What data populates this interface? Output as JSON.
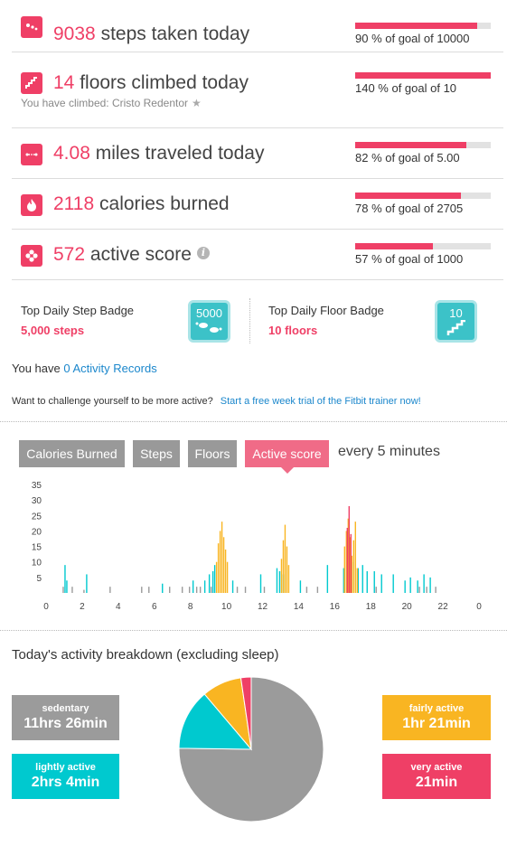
{
  "stats": [
    {
      "icon": "steps-icon",
      "value": "9038",
      "label": "steps taken today",
      "goal_text": "90 % of goal of 10000",
      "goal_fraction": 0.9
    },
    {
      "icon": "floors-icon",
      "value": "14",
      "label": "floors climbed today",
      "goal_text": "140 % of goal of 10",
      "goal_fraction": 1.0,
      "note": "You have climbed: Cristo Redentor"
    },
    {
      "icon": "distance-icon",
      "value": "4.08",
      "label": "miles traveled today",
      "goal_text": "82 % of goal of 5.00",
      "goal_fraction": 0.82
    },
    {
      "icon": "flame-icon",
      "value": "2118",
      "label": "calories burned",
      "goal_text": "78 % of goal of 2705",
      "goal_fraction": 0.78
    },
    {
      "icon": "flower-icon",
      "value": "572",
      "label": "active score",
      "goal_text": "57 % of goal of 1000",
      "goal_fraction": 0.57,
      "info_icon": "info-icon"
    }
  ],
  "badges": {
    "step": {
      "title": "Top Daily Step Badge",
      "value": "5,000 steps",
      "badge_label": "5000"
    },
    "floor": {
      "title": "Top Daily Floor Badge",
      "value": "10 floors",
      "badge_label": "10"
    }
  },
  "records": {
    "prefix": "You have",
    "link": "0 Activity Records"
  },
  "challenge": {
    "text": "Want to challenge yourself to be more active?",
    "link": "Start a free week trial of the Fitbit trainer now!"
  },
  "chart_tabs": [
    "Calories Burned",
    "Steps",
    "Floors",
    "Active score"
  ],
  "active_tab": "Active score",
  "interval": "every 5 minutes",
  "chart_data": {
    "type": "bar",
    "x_ticks": [
      "0",
      "2",
      "4",
      "6",
      "8",
      "10",
      "12",
      "14",
      "16",
      "18",
      "20",
      "22",
      "0"
    ],
    "y_ticks": [
      "5",
      "10",
      "15",
      "20",
      "25",
      "30",
      "35"
    ],
    "ylim": [
      0,
      35
    ],
    "colors": {
      "sedentary": "#9b9b9b",
      "lightly_active": "#00c9cf",
      "fairly_active": "#f9b522",
      "very_active": "#ef3f66"
    },
    "series": [
      {
        "level": "sedentary",
        "x": [
          0.95,
          1.45,
          2.1,
          3.55,
          5.3,
          5.7,
          6.85,
          7.55,
          7.95,
          8.35,
          8.55,
          9.15,
          10.6,
          11.05,
          12.1,
          14.45,
          15.05,
          18.3,
          20.7,
          21.1,
          21.6
        ],
        "values": [
          2,
          2,
          1,
          2,
          2,
          2,
          2,
          2,
          2,
          2,
          2,
          2,
          2,
          2,
          2,
          2,
          2,
          2,
          2,
          2,
          2
        ]
      },
      {
        "level": "lightly_active",
        "x": [
          1.05,
          1.15,
          2.25,
          6.45,
          8.15,
          8.8,
          9.05,
          9.25,
          9.35,
          10.35,
          11.9,
          12.8,
          12.95,
          13.15,
          14.1,
          15.6,
          16.5,
          16.85,
          17.05,
          17.3,
          17.55,
          17.8,
          18.2,
          18.6,
          19.25,
          19.9,
          20.2,
          20.6,
          20.95,
          21.3
        ],
        "values": [
          9,
          4,
          6,
          3,
          4,
          4,
          6,
          7,
          9,
          4,
          6,
          8,
          7,
          6,
          4,
          9,
          8,
          9,
          10,
          8,
          9,
          7,
          7,
          6,
          6,
          4,
          5,
          4,
          6,
          5
        ]
      },
      {
        "level": "fairly_active",
        "x": [
          9.45,
          9.55,
          9.65,
          9.75,
          9.85,
          9.95,
          10.05,
          13.05,
          13.15,
          13.25,
          13.35,
          13.45,
          16.55,
          16.65,
          16.75,
          16.85,
          16.95,
          17.05,
          17.15,
          17.25
        ],
        "values": [
          10,
          16,
          20,
          23,
          18,
          14,
          10,
          11,
          17,
          22,
          15,
          9,
          15,
          20,
          24,
          18,
          12,
          17,
          23,
          8
        ]
      },
      {
        "level": "very_active",
        "x": [
          16.7,
          16.8,
          16.9
        ],
        "values": [
          21,
          28,
          19
        ]
      }
    ]
  },
  "breakdown": {
    "title": "Today's activity breakdown (excluding sleep)",
    "categories": [
      {
        "key": "sedentary",
        "label": "sedentary",
        "duration": "11hrs 26min",
        "color": "#9b9b9b",
        "minutes": 686
      },
      {
        "key": "lightly_active",
        "label": "lightly active",
        "duration": "2hrs 4min",
        "color": "#00c9cf",
        "minutes": 124
      },
      {
        "key": "fairly_active",
        "label": "fairly active",
        "duration": "1hr 21min",
        "color": "#f9b522",
        "minutes": 81
      },
      {
        "key": "very_active",
        "label": "very active",
        "duration": "21min",
        "color": "#ef3f66",
        "minutes": 21
      }
    ]
  }
}
